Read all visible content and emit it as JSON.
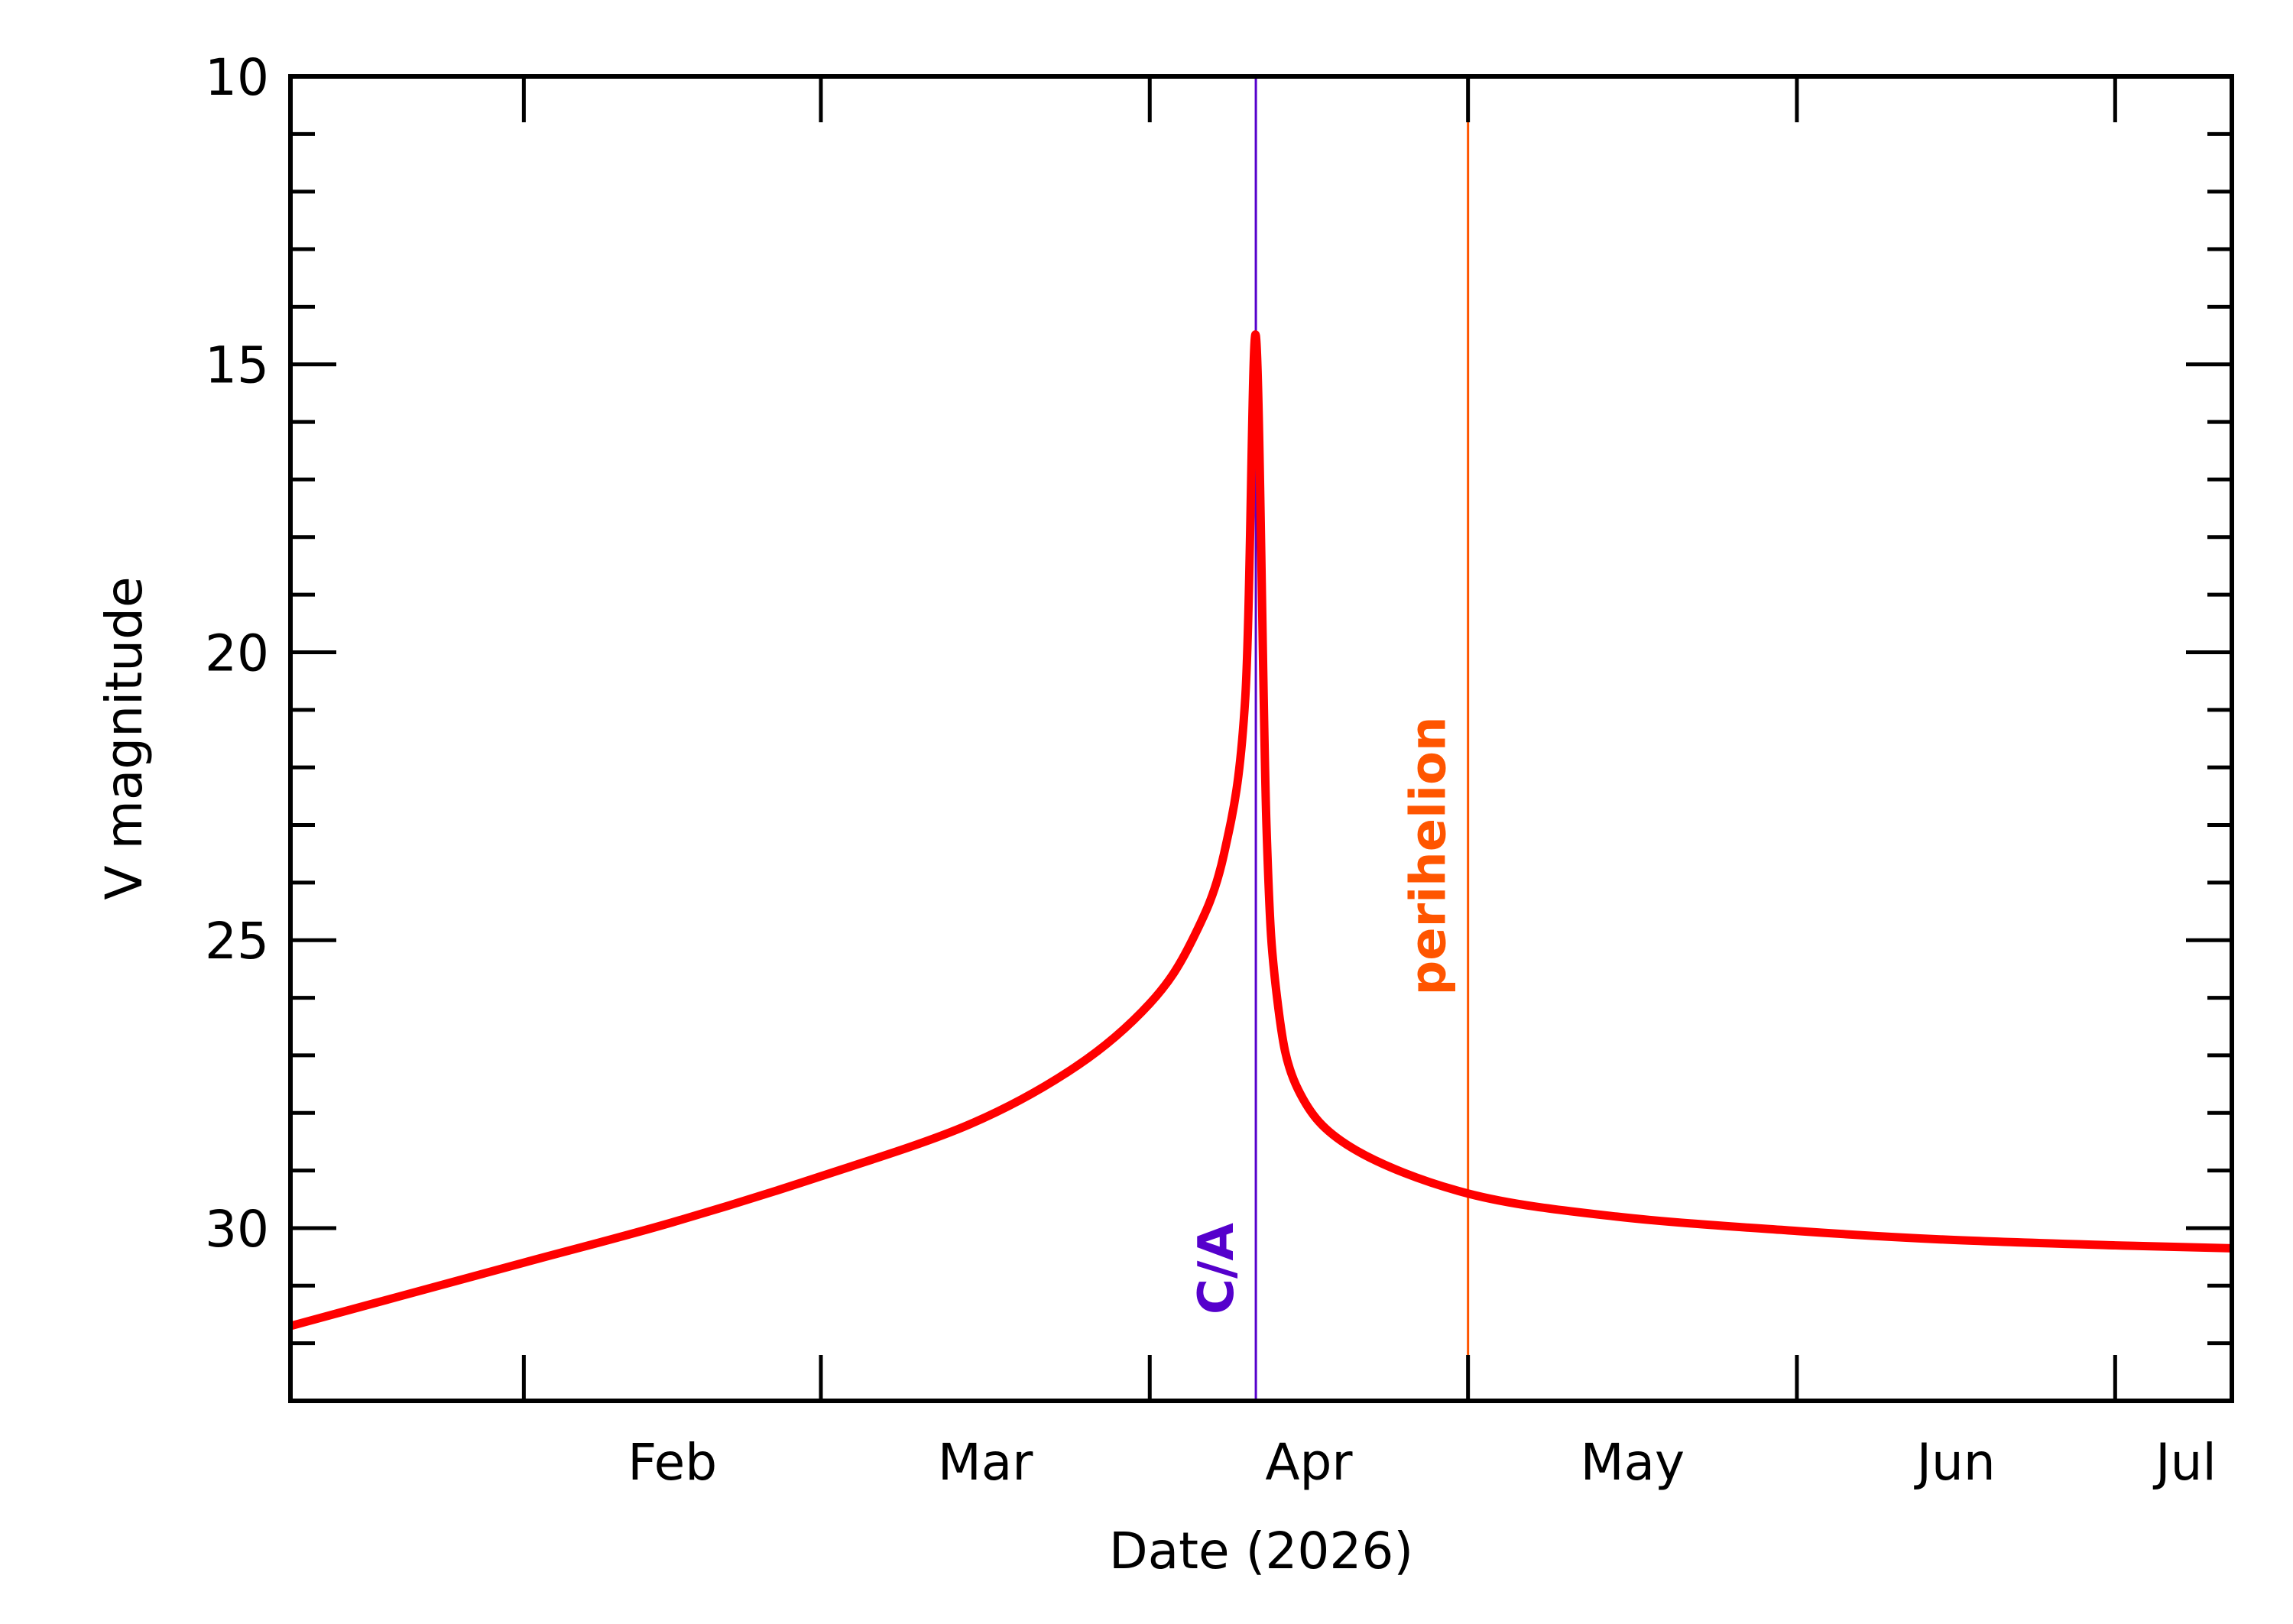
{
  "chart_data": {
    "type": "line",
    "xlabel": "Date (2026)",
    "ylabel": "V magnitude",
    "x_range": [
      "2026-01-10",
      "2026-07-12"
    ],
    "ylim": [
      10,
      33
    ],
    "y_inverted": true,
    "grid": false,
    "x_tick_labels": [
      {
        "label": "Feb",
        "date": "2026-02-01"
      },
      {
        "label": "Mar",
        "date": "2026-03-01"
      },
      {
        "label": "Apr",
        "date": "2026-04-01"
      },
      {
        "label": "May",
        "date": "2026-05-01"
      },
      {
        "label": "Jun",
        "date": "2026-06-01"
      },
      {
        "label": "Jul",
        "date": "2026-07-01"
      }
    ],
    "y_ticks": [
      10,
      15,
      20,
      25,
      30
    ],
    "series": [
      {
        "color": "#ff0000",
        "points": [
          [
            "2026-01-10",
            31.7
          ],
          [
            "2026-01-20",
            31.2
          ],
          [
            "2026-02-01",
            30.6
          ],
          [
            "2026-02-15",
            29.9
          ],
          [
            "2026-03-01",
            29.1
          ],
          [
            "2026-03-15",
            28.2
          ],
          [
            "2026-03-25",
            27.2
          ],
          [
            "2026-04-01",
            26.1
          ],
          [
            "2026-04-05",
            25.0
          ],
          [
            "2026-04-08",
            23.5
          ],
          [
            "2026-04-10",
            20.8
          ],
          [
            "2026-04-11",
            14.5
          ],
          [
            "2026-04-12",
            23.0
          ],
          [
            "2026-04-13",
            26.0
          ],
          [
            "2026-04-15",
            27.6
          ],
          [
            "2026-04-20",
            28.6
          ],
          [
            "2026-05-01",
            29.4
          ],
          [
            "2026-05-15",
            29.8
          ],
          [
            "2026-06-01",
            30.05
          ],
          [
            "2026-06-15",
            30.2
          ],
          [
            "2026-07-01",
            30.3
          ],
          [
            "2026-07-12",
            30.35
          ]
        ]
      }
    ],
    "markers": [
      {
        "label": "C/A",
        "date": "2026-04-11",
        "color": "#5500cc"
      },
      {
        "label": "perihelion",
        "date": "2026-05-01",
        "color": "#ff5500"
      }
    ]
  }
}
